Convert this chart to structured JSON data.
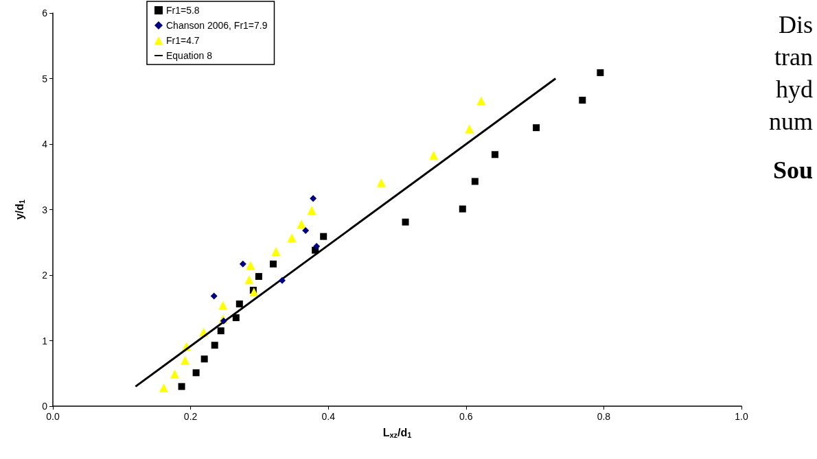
{
  "chart_data": {
    "type": "scatter",
    "xlabel": "L$_{xz}$/d$_{1}$",
    "ylabel": "y/d$_{1}$",
    "xlim": [
      0,
      1
    ],
    "xticks": [
      {
        "value": 0,
        "label": "0.0"
      },
      0.2,
      0.4,
      0.6,
      0.8,
      {
        "value": 1,
        "label": "1.0"
      }
    ],
    "ylim": [
      0,
      6
    ],
    "yticks": [
      0,
      1,
      2,
      3,
      4,
      5,
      6
    ],
    "grid": false,
    "legend": "top left",
    "series": [
      {
        "name": "Fr1=5.8",
        "color": "#000000",
        "marker": "square",
        "x": [
          0.187,
          0.208,
          0.22,
          0.235,
          0.244,
          0.266,
          0.271,
          0.291,
          0.299,
          0.32,
          0.381,
          0.393,
          0.512,
          0.595,
          0.613,
          0.642,
          0.702,
          0.769,
          0.795
        ],
        "values": [
          0.3,
          0.51,
          0.72,
          0.93,
          1.15,
          1.35,
          1.56,
          1.77,
          1.98,
          2.17,
          2.38,
          2.59,
          2.81,
          3.01,
          3.43,
          3.84,
          4.25,
          4.67,
          5.09
        ]
      },
      {
        "name": "Chanson 2006, Fr1=7.9",
        "color": "#000080",
        "marker": "diamond",
        "x": [
          0.234,
          0.248,
          0.276,
          0.333,
          0.367,
          0.378,
          0.383
        ],
        "values": [
          1.68,
          1.3,
          2.17,
          1.92,
          2.68,
          3.17,
          2.44
        ]
      },
      {
        "name": "Fr1=4.7",
        "color": "#ffff00",
        "marker": "triangle",
        "x": [
          0.161,
          0.177,
          0.192,
          0.194,
          0.219,
          0.247,
          0.247,
          0.292,
          0.285,
          0.287,
          0.324,
          0.347,
          0.361,
          0.376,
          0.477,
          0.553,
          0.605,
          0.622
        ],
        "values": [
          0.28,
          0.49,
          0.7,
          0.91,
          1.13,
          1.33,
          1.54,
          1.74,
          1.93,
          2.15,
          2.36,
          2.57,
          2.78,
          2.99,
          3.41,
          3.83,
          4.23,
          4.66
        ]
      },
      {
        "name": "Equation 8",
        "type": "line",
        "color": "#000000",
        "marker": "none",
        "line_style": "solid",
        "x": [
          0.12,
          0.73
        ],
        "values": [
          0.3,
          5.0
        ]
      }
    ],
    "annotations": [
      "Dis",
      "tran",
      "hyd",
      "num",
      "Sou"
    ]
  }
}
